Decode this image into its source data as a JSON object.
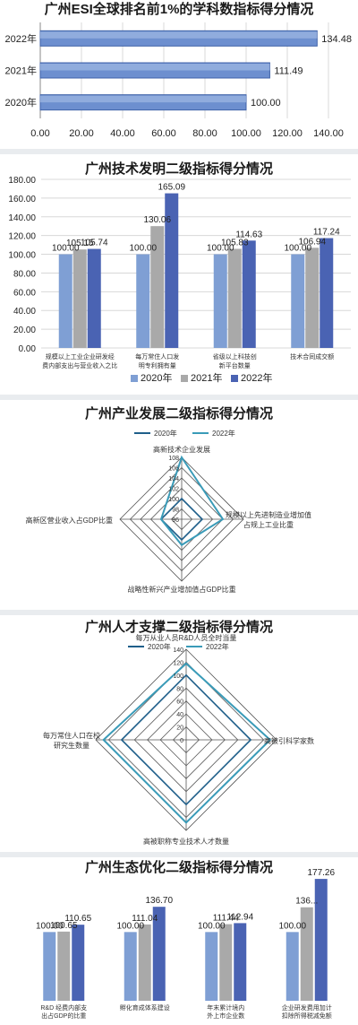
{
  "colors": {
    "c2020": "#7f9fd4",
    "c2021": "#a9a9a9",
    "c2022": "#4a63b3",
    "radar2020": "#1f5f8a",
    "radar2022": "#3a9bb8",
    "grid": "#d8d8d8",
    "spider": "#555555"
  },
  "chart_data": [
    {
      "type": "bar",
      "orientation": "horizontal",
      "title": "广州ESI全球排名前1%的学科数指标得分情况",
      "categories": [
        "2022年",
        "2021年",
        "2020年"
      ],
      "values": [
        134.48,
        111.49,
        100.0
      ],
      "value_labels": [
        "134.48",
        "111.49",
        "100.00"
      ],
      "xlim": [
        0,
        140
      ],
      "xticks": [
        "0.00",
        "20.00",
        "40.00",
        "60.00",
        "80.00",
        "100.00",
        "120.00",
        "140.00"
      ]
    },
    {
      "type": "bar",
      "title": "广州技术发明二级指标得分情况",
      "categories": [
        [
          "规模以上工业企业研发经",
          "费内部支出与营业收入之比"
        ],
        [
          "每万常住人口发",
          "明专利拥有量"
        ],
        [
          "省级以上科技创",
          "新平台数量"
        ],
        [
          "技术合同成交额"
        ]
      ],
      "series": [
        {
          "name": "2020年",
          "values": [
            100.0,
            100.0,
            100.0,
            100.0
          ],
          "labels": [
            "100.00",
            "100.00",
            "100.00",
            "100.00"
          ]
        },
        {
          "name": "2021年",
          "values": [
            105.15,
            130.06,
            105.83,
            106.94
          ],
          "labels": [
            "105.15",
            "130.06",
            "105.83",
            "106.94"
          ]
        },
        {
          "name": "2022年",
          "values": [
            105.74,
            165.09,
            114.63,
            117.24
          ],
          "labels": [
            "105.74",
            "165.09",
            "114.63",
            "117.24"
          ]
        }
      ],
      "ylim": [
        0,
        180
      ],
      "yticks": [
        "0.00",
        "20.00",
        "40.00",
        "60.00",
        "80.00",
        "100.00",
        "120.00",
        "140.00",
        "160.00",
        "180.00"
      ],
      "legend_position": "bottom"
    },
    {
      "type": "radar",
      "title": "广州产业发展二级指标得分情况",
      "axes": [
        [
          "高新技术企业发展"
        ],
        [
          "规模以上先进制造业增加值",
          "占规上工业比重"
        ],
        [
          "战略性新兴产业增加值占GDP比重"
        ],
        [
          "高新区营业收入占GDP比重"
        ]
      ],
      "series": [
        {
          "name": "2020年",
          "values": [
            100,
            100,
            100,
            100
          ]
        },
        {
          "name": "2022年",
          "values": [
            108,
            104,
            101,
            100
          ]
        }
      ],
      "rlim": [
        96,
        108
      ],
      "ticks": [
        "96",
        "98",
        "100",
        "102",
        "104",
        "106",
        "108"
      ],
      "legend_position": "top"
    },
    {
      "type": "radar",
      "title": "广州人才支撑二级指标得分情况",
      "axes": [
        [
          "每万从业人员R&D人员全时当量"
        ],
        [
          "高被引科学家数"
        ],
        [
          "高被职称专业技术人才数量"
        ],
        [
          "每万常住人口在校",
          "研究生数量"
        ]
      ],
      "series": [
        {
          "name": "2020年",
          "values": [
            100,
            100,
            100,
            100
          ]
        },
        {
          "name": "2022年",
          "values": [
            118,
            130,
            128,
            128
          ]
        }
      ],
      "rlim": [
        0,
        140
      ],
      "ticks": [
        "0",
        "20",
        "40",
        "60",
        "80",
        "100",
        "120",
        "140"
      ],
      "legend_position": "top"
    },
    {
      "type": "bar",
      "title": "广州生态优化二级指标得分情况",
      "categories": [
        [
          "R&D 经费内部支",
          "出占GDP的比重"
        ],
        [
          "孵化育成体系建设"
        ],
        [
          "年末累计境内",
          "外上市企业数"
        ],
        [
          "企业研发费用加计",
          "扣除所得税减免额"
        ]
      ],
      "series": [
        {
          "name": "2020年",
          "values": [
            100.0,
            100.0,
            100.0,
            100.0
          ],
          "labels": [
            "100.00",
            "100.00",
            "100.00",
            "100.00"
          ]
        },
        {
          "name": "2021年",
          "values": [
            100.65,
            111.04,
            111.44,
            136.0
          ],
          "labels": [
            "100.65",
            "111.04",
            "111.44",
            "136..."
          ]
        },
        {
          "name": "2022年",
          "values": [
            110.65,
            136.7,
            112.94,
            177.26
          ],
          "labels": [
            "110.65",
            "136.70",
            "112.94",
            "177.26"
          ]
        }
      ],
      "ylim": [
        0,
        180
      ]
    }
  ]
}
